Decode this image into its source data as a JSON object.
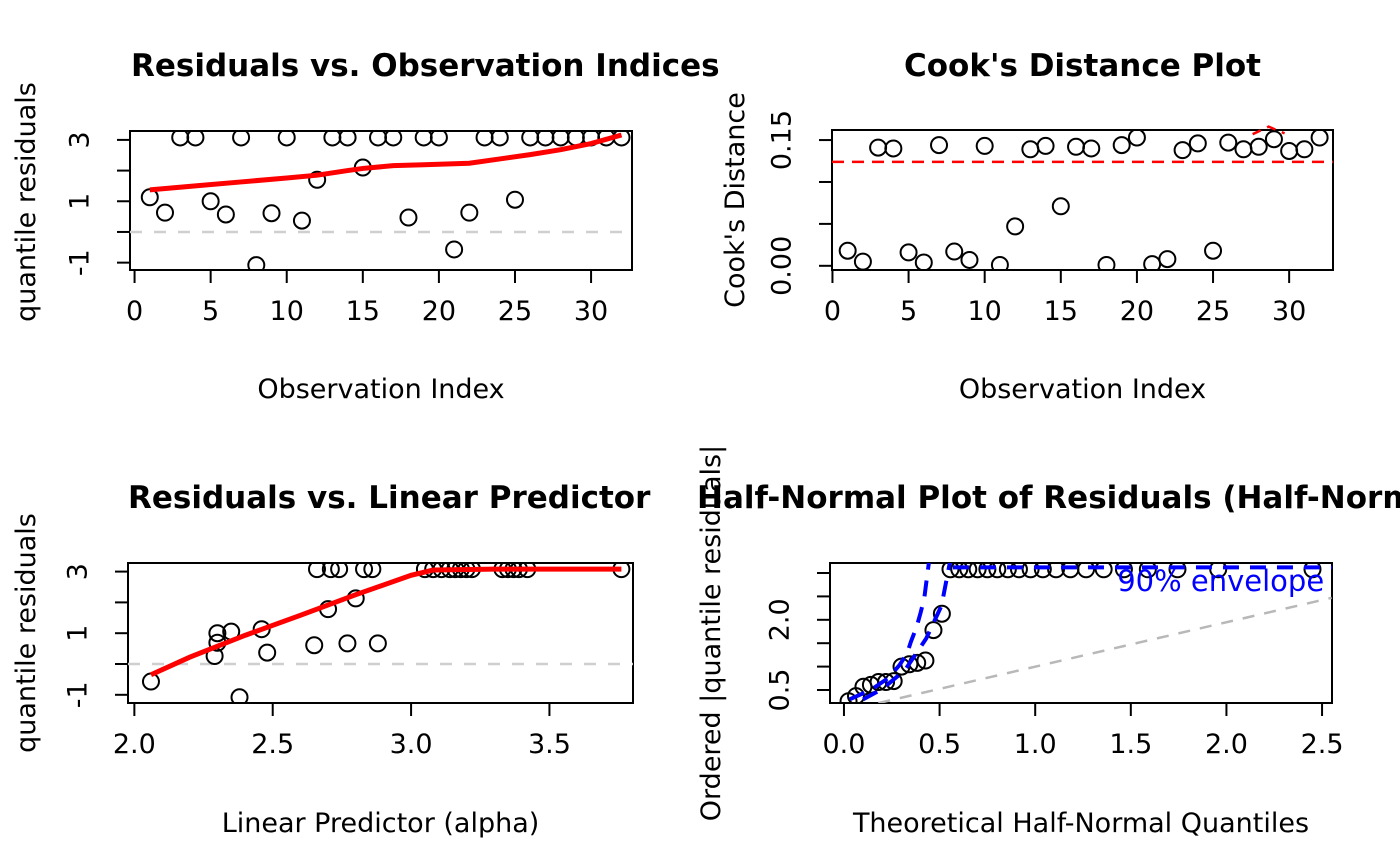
{
  "figure": {
    "background": "#ffffff"
  },
  "colors": {
    "trend_red": "#ff0000",
    "threshold_red": "#ff0000",
    "envelope_blue": "#0000ff",
    "zero_line_gray": "#cfcfcf",
    "reference_gray": "#b8b8b8",
    "point_stroke": "#000000"
  },
  "chart_data": [
    {
      "type": "scatter",
      "title": "Residuals vs. Observation Indices",
      "xlabel": "Observation Index",
      "ylabel": "quantile residuals",
      "xlim": [
        -0.3,
        32.69
      ],
      "ylim": [
        -1.24,
        3.29
      ],
      "grid": false,
      "xticks": {
        "values": [
          0,
          5,
          10,
          15,
          20,
          25,
          30
        ],
        "labels": [
          "0",
          "5",
          "10",
          "15",
          "20",
          "25",
          "30"
        ]
      },
      "yticks": {
        "values": [
          -1,
          0,
          1,
          2,
          3
        ],
        "labels": [
          "-1",
          "",
          "1",
          "",
          "3"
        ]
      },
      "points": {
        "x": [
          1,
          2,
          3,
          4,
          5,
          6,
          7,
          8,
          9,
          10,
          11,
          12,
          13,
          14,
          15,
          16,
          17,
          18,
          19,
          20,
          21,
          22,
          23,
          24,
          25,
          26,
          27,
          28,
          29,
          30,
          31,
          32
        ],
        "y": [
          1.13,
          0.63,
          3.08,
          3.08,
          1.0,
          0.57,
          3.08,
          -1.08,
          0.61,
          3.08,
          0.37,
          1.7,
          3.08,
          3.08,
          2.1,
          3.08,
          3.08,
          0.47,
          3.08,
          3.08,
          -0.57,
          0.63,
          3.08,
          3.08,
          1.05,
          3.08,
          3.08,
          3.08,
          3.08,
          3.08,
          3.08,
          3.08
        ]
      },
      "lines": [
        {
          "name": "zero-reference-line",
          "color": "#cfcfcf",
          "dash": "12,12",
          "width": 2.5,
          "clip": true,
          "pts": [
            [
              -0.3,
              0
            ],
            [
              32.69,
              0
            ]
          ]
        },
        {
          "name": "trend-line",
          "color": "#ff0000",
          "dash": "",
          "width": 5,
          "clip": true,
          "pts": [
            [
              1,
              1.37
            ],
            [
              4,
              1.5
            ],
            [
              7,
              1.63
            ],
            [
              10,
              1.76
            ],
            [
              12,
              1.85
            ],
            [
              14,
              2.0
            ],
            [
              15,
              2.07
            ],
            [
              17,
              2.16
            ],
            [
              19,
              2.19
            ],
            [
              22,
              2.24
            ],
            [
              24,
              2.38
            ],
            [
              26,
              2.52
            ],
            [
              28,
              2.68
            ],
            [
              30,
              2.88
            ],
            [
              32,
              3.16
            ]
          ]
        }
      ],
      "annotations": []
    },
    {
      "type": "scatter",
      "title": "Cook's Distance Plot",
      "xlabel": "Observation Index",
      "ylabel": "Cook's Distance",
      "xlim": [
        -0.03,
        32.88
      ],
      "ylim": [
        -0.005,
        0.162
      ],
      "grid": false,
      "xticks": {
        "values": [
          0,
          5,
          10,
          15,
          20,
          25,
          30
        ],
        "labels": [
          "0",
          "5",
          "10",
          "15",
          "20",
          "25",
          "30"
        ]
      },
      "yticks": {
        "values": [
          0,
          0.05,
          0.1,
          0.15
        ],
        "labels": [
          "0.00",
          "",
          "",
          "0.15"
        ]
      },
      "points": {
        "x": [
          1,
          2,
          3,
          4,
          5,
          6,
          7,
          8,
          9,
          10,
          11,
          12,
          13,
          14,
          15,
          16,
          17,
          18,
          19,
          20,
          21,
          22,
          23,
          24,
          25,
          26,
          27,
          28,
          29,
          30,
          31,
          32
        ],
        "y": [
          0.018,
          0.005,
          0.141,
          0.14,
          0.016,
          0.004,
          0.144,
          0.017,
          0.007,
          0.143,
          0.001,
          0.047,
          0.139,
          0.143,
          0.071,
          0.142,
          0.14,
          0.001,
          0.144,
          0.153,
          0.002,
          0.008,
          0.138,
          0.146,
          0.018,
          0.147,
          0.139,
          0.142,
          0.151,
          0.137,
          0.139,
          0.153
        ]
      },
      "lines": [
        {
          "name": "threshold-line",
          "color": "#ff0000",
          "dash": "12,8",
          "width": 2.5,
          "clip": true,
          "pts": [
            [
              -0.03,
              0.124
            ],
            [
              32.88,
              0.124
            ]
          ]
        },
        {
          "name": "smoother-peek",
          "color": "#ff0000",
          "dash": "9,7",
          "width": 2.5,
          "clip": false,
          "pts": [
            [
              27.6,
              0.157
            ],
            [
              28.65,
              0.166
            ],
            [
              29.7,
              0.158
            ]
          ]
        }
      ],
      "annotations": []
    },
    {
      "type": "scatter",
      "title": "Residuals vs. Linear Predictor",
      "xlabel": "Linear Predictor (alpha)",
      "ylabel": "quantile residuals",
      "xlim": [
        1.977,
        3.802
      ],
      "ylim": [
        -1.266,
        3.279
      ],
      "grid": false,
      "xticks": {
        "values": [
          2.0,
          2.5,
          3.0,
          3.5
        ],
        "labels": [
          "2.0",
          "2.5",
          "3.0",
          "3.5"
        ]
      },
      "yticks": {
        "values": [
          -1,
          0,
          1,
          2,
          3
        ],
        "labels": [
          "-1",
          "",
          "1",
          "",
          "3"
        ]
      },
      "points": {
        "x": [
          2.06,
          2.29,
          2.3,
          2.3,
          2.35,
          2.38,
          2.46,
          2.48,
          2.65,
          2.66,
          2.7,
          2.71,
          2.74,
          2.77,
          2.8,
          2.83,
          2.86,
          2.88,
          3.05,
          3.08,
          3.11,
          3.14,
          3.16,
          3.18,
          3.2,
          3.22,
          3.33,
          3.35,
          3.37,
          3.39,
          3.42,
          3.76
        ],
        "y": [
          -0.57,
          0.26,
          1.0,
          0.69,
          1.05,
          -1.08,
          1.13,
          0.37,
          0.61,
          3.08,
          1.78,
          3.08,
          3.08,
          0.67,
          2.13,
          3.08,
          3.08,
          0.67,
          3.08,
          3.08,
          3.08,
          3.08,
          3.08,
          3.08,
          3.08,
          3.08,
          3.08,
          3.08,
          3.08,
          3.08,
          3.08,
          3.08
        ]
      },
      "lines": [
        {
          "name": "zero-reference-line",
          "color": "#cfcfcf",
          "dash": "12,12",
          "width": 2.5,
          "clip": true,
          "pts": [
            [
              1.977,
              0
            ],
            [
              3.802,
              0
            ]
          ]
        },
        {
          "name": "trend-line",
          "color": "#ff0000",
          "dash": "",
          "width": 5,
          "clip": true,
          "pts": [
            [
              2.06,
              -0.35
            ],
            [
              2.2,
              0.22
            ],
            [
              2.4,
              0.93
            ],
            [
              2.6,
              1.58
            ],
            [
              2.8,
              2.25
            ],
            [
              3.0,
              2.88
            ],
            [
              3.08,
              3.05
            ],
            [
              3.3,
              3.08
            ],
            [
              3.76,
              3.08
            ]
          ]
        }
      ],
      "annotations": []
    },
    {
      "type": "scatter",
      "title": "Half-Normal Plot of Residuals (Half-Norm",
      "xlabel": "Theoretical Half-Normal Quantiles",
      "ylabel": "Ordered |quantile residuals|",
      "xlim": [
        -0.073,
        2.552
      ],
      "ylim": [
        0.222,
        3.214
      ],
      "grid": false,
      "xticks": {
        "values": [
          0.0,
          0.5,
          1.0,
          1.5,
          2.0,
          2.5
        ],
        "labels": [
          "0.0",
          "0.5",
          "1.0",
          "1.5",
          "2.0",
          "2.5"
        ]
      },
      "yticks": {
        "values": [
          0.5,
          1.0,
          1.5,
          2.0,
          2.5,
          3.0
        ],
        "labels": [
          "0.5",
          "",
          "",
          "2.0",
          "",
          ""
        ]
      },
      "points": {
        "x": [
          0.024,
          0.063,
          0.102,
          0.141,
          0.181,
          0.22,
          0.26,
          0.301,
          0.342,
          0.383,
          0.426,
          0.468,
          0.512,
          0.557,
          0.603,
          0.65,
          0.699,
          0.75,
          0.802,
          0.857,
          0.915,
          0.976,
          1.04,
          1.109,
          1.184,
          1.266,
          1.358,
          1.464,
          1.589,
          1.744,
          1.957,
          2.45
        ],
        "y": [
          0.26,
          0.37,
          0.57,
          0.61,
          0.67,
          0.67,
          0.69,
          1.0,
          1.05,
          1.08,
          1.13,
          1.78,
          2.13,
          3.08,
          3.08,
          3.08,
          3.08,
          3.08,
          3.08,
          3.08,
          3.08,
          3.08,
          3.08,
          3.08,
          3.08,
          3.08,
          3.08,
          3.08,
          3.08,
          3.08,
          3.08,
          3.08
        ]
      },
      "lines": [
        {
          "name": "reference-line",
          "color": "#b8b8b8",
          "dash": "12,10",
          "width": 2.5,
          "clip": true,
          "pts": [
            [
              0.18,
              0.22
            ],
            [
              2.55,
              2.47
            ]
          ]
        },
        {
          "name": "envelope-upper",
          "color": "#0000ff",
          "dash": "16,11",
          "width": 4,
          "clip": true,
          "pts": [
            [
              0.03,
              0.3
            ],
            [
              0.14,
              0.5
            ],
            [
              0.23,
              0.75
            ],
            [
              0.29,
              1.03
            ],
            [
              0.33,
              1.28
            ],
            [
              0.35,
              1.53
            ],
            [
              0.38,
              1.85
            ],
            [
              0.4,
              2.14
            ],
            [
              0.42,
              2.46
            ],
            [
              0.43,
              2.78
            ],
            [
              0.445,
              3.25
            ]
          ]
        },
        {
          "name": "envelope-lower",
          "color": "#0000ff",
          "dash": "16,11",
          "width": 4,
          "clip": true,
          "pts": [
            [
              0.1,
              0.3
            ],
            [
              0.2,
              0.52
            ],
            [
              0.32,
              0.93
            ],
            [
              0.43,
              1.6
            ],
            [
              0.51,
              2.3
            ],
            [
              0.555,
              3.25
            ]
          ]
        },
        {
          "name": "envelope-top",
          "color": "#0000ff",
          "dash": "16,11",
          "width": 4,
          "clip": true,
          "pts": [
            [
              0.57,
              3.12
            ],
            [
              2.552,
              3.12
            ]
          ]
        }
      ],
      "annotations": [
        {
          "name": "envelope-label",
          "text": "90% envelope",
          "x": 1.97,
          "y": 2.83,
          "color": "#0000ff",
          "size": 29
        }
      ]
    }
  ]
}
